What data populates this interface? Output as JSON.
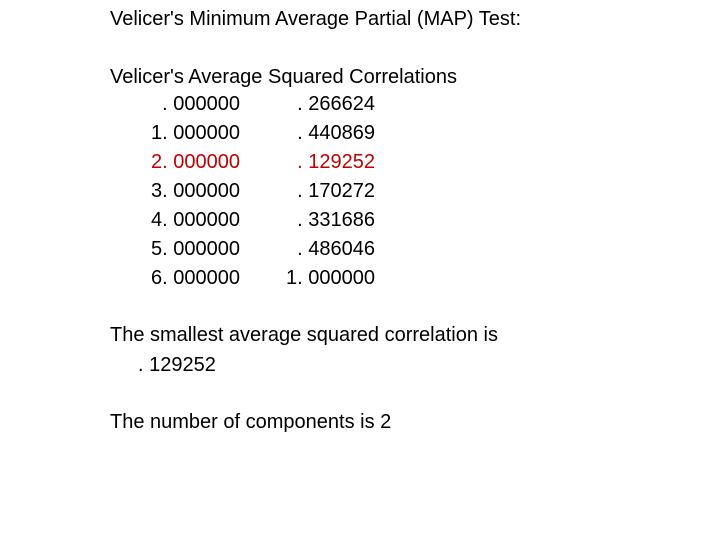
{
  "title": "Velicer's Minimum Average Partial (MAP) Test:",
  "table": {
    "heading": "Velicer's Average Squared Correlations",
    "rows": [
      {
        "factor": ". 000000",
        "value": ". 266624",
        "highlight": false
      },
      {
        "factor": "1. 000000",
        "value": ". 440869",
        "highlight": false
      },
      {
        "factor": "2. 000000",
        "value": ". 129252",
        "highlight": true
      },
      {
        "factor": "3. 000000",
        "value": ". 170272",
        "highlight": false
      },
      {
        "factor": "4. 000000",
        "value": ". 331686",
        "highlight": false
      },
      {
        "factor": "5. 000000",
        "value": ". 486046",
        "highlight": false
      },
      {
        "factor": "6. 000000",
        "value": "1. 000000",
        "highlight": false
      }
    ],
    "highlight_color": "#c00000"
  },
  "smallest": {
    "label": "The smallest average squared correlation is",
    "value": ". 129252"
  },
  "components": {
    "text": "The number of components is 2"
  }
}
